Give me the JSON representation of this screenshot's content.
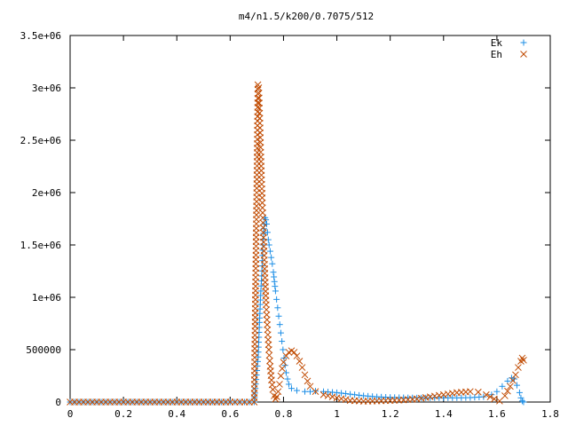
{
  "chart_data": {
    "type": "scatter",
    "title": "m4/n1.5/k200/0.7075/512",
    "xlabel": "",
    "ylabel": "",
    "xlim": [
      0,
      1.8
    ],
    "ylim": [
      0,
      3500000
    ],
    "x_ticks": [
      0,
      0.2,
      0.4,
      0.6,
      0.8,
      1,
      1.2,
      1.4,
      1.6,
      1.8
    ],
    "x_tick_labels": [
      "0",
      "0.2",
      "0.4",
      "0.6",
      "0.8",
      "1",
      "1.2",
      "1.4",
      "1.6",
      "1.8"
    ],
    "y_ticks": [
      0,
      500000,
      1000000,
      1500000,
      2000000,
      2500000,
      3000000,
      3500000
    ],
    "y_tick_labels": [
      "0",
      "500000",
      "1e+06",
      "1.5e+06",
      "2e+06",
      "2.5e+06",
      "3e+06",
      "3.5e+06"
    ],
    "grid": false,
    "legend_position": "top-right",
    "series": [
      {
        "name": "Ek",
        "marker": "plus",
        "color": "#1e8fe6",
        "points": [
          [
            0.0,
            0
          ],
          [
            0.1,
            0
          ],
          [
            0.2,
            0
          ],
          [
            0.3,
            0
          ],
          [
            0.4,
            0
          ],
          [
            0.5,
            0
          ],
          [
            0.6,
            0
          ],
          [
            0.69,
            0
          ],
          [
            0.705,
            430000
          ],
          [
            0.71,
            760000
          ],
          [
            0.715,
            1060000
          ],
          [
            0.72,
            1300000
          ],
          [
            0.722,
            1500000
          ],
          [
            0.725,
            1610000
          ],
          [
            0.728,
            1700000
          ],
          [
            0.731,
            1760000
          ],
          [
            0.734,
            1740000
          ],
          [
            0.737,
            1700000
          ],
          [
            0.74,
            1620000
          ],
          [
            0.743,
            1550000
          ],
          [
            0.746,
            1500000
          ],
          [
            0.75,
            1440000
          ],
          [
            0.754,
            1380000
          ],
          [
            0.758,
            1320000
          ],
          [
            0.762,
            1240000
          ],
          [
            0.766,
            1150000
          ],
          [
            0.77,
            1060000
          ],
          [
            0.774,
            980000
          ],
          [
            0.778,
            900000
          ],
          [
            0.782,
            820000
          ],
          [
            0.786,
            740000
          ],
          [
            0.79,
            660000
          ],
          [
            0.794,
            580000
          ],
          [
            0.798,
            500000
          ],
          [
            0.802,
            420000
          ],
          [
            0.806,
            350000
          ],
          [
            0.81,
            280000
          ],
          [
            0.815,
            220000
          ],
          [
            0.82,
            170000
          ],
          [
            0.83,
            130000
          ],
          [
            0.85,
            110000
          ],
          [
            0.88,
            100000
          ],
          [
            0.9,
            100000
          ],
          [
            0.92,
            105000
          ],
          [
            0.95,
            100000
          ],
          [
            1.0,
            90000
          ],
          [
            1.05,
            75000
          ],
          [
            1.1,
            60000
          ],
          [
            1.15,
            50000
          ],
          [
            1.2,
            45000
          ],
          [
            1.25,
            42000
          ],
          [
            1.3,
            40000
          ],
          [
            1.35,
            40000
          ],
          [
            1.4,
            40000
          ],
          [
            1.45,
            40000
          ],
          [
            1.5,
            42000
          ],
          [
            1.55,
            50000
          ],
          [
            1.58,
            70000
          ],
          [
            1.6,
            100000
          ],
          [
            1.62,
            150000
          ],
          [
            1.64,
            200000
          ],
          [
            1.655,
            230000
          ],
          [
            1.665,
            220000
          ],
          [
            1.675,
            160000
          ],
          [
            1.685,
            90000
          ],
          [
            1.69,
            40000
          ],
          [
            1.695,
            10000
          ],
          [
            1.7,
            0
          ]
        ]
      },
      {
        "name": "Eh",
        "marker": "cross",
        "color": "#c04a00",
        "points": [
          [
            0.0,
            0
          ],
          [
            0.1,
            0
          ],
          [
            0.2,
            0
          ],
          [
            0.3,
            0
          ],
          [
            0.4,
            0
          ],
          [
            0.5,
            0
          ],
          [
            0.6,
            0
          ],
          [
            0.69,
            0
          ],
          [
            0.702,
            2510000
          ],
          [
            0.704,
            3030000
          ],
          [
            0.707,
            3000000
          ],
          [
            0.711,
            2710000
          ],
          [
            0.715,
            2340000
          ],
          [
            0.72,
            1950000
          ],
          [
            0.725,
            1570000
          ],
          [
            0.73,
            1230000
          ],
          [
            0.735,
            930000
          ],
          [
            0.74,
            690000
          ],
          [
            0.745,
            500000
          ],
          [
            0.75,
            340000
          ],
          [
            0.755,
            210000
          ],
          [
            0.76,
            120000
          ],
          [
            0.765,
            60000
          ],
          [
            0.77,
            30000
          ],
          [
            0.775,
            50000
          ],
          [
            0.78,
            100000
          ],
          [
            0.785,
            170000
          ],
          [
            0.79,
            250000
          ],
          [
            0.795,
            320000
          ],
          [
            0.8,
            380000
          ],
          [
            0.81,
            440000
          ],
          [
            0.82,
            475000
          ],
          [
            0.83,
            490000
          ],
          [
            0.84,
            475000
          ],
          [
            0.85,
            440000
          ],
          [
            0.86,
            390000
          ],
          [
            0.87,
            330000
          ],
          [
            0.88,
            260000
          ],
          [
            0.89,
            200000
          ],
          [
            0.9,
            150000
          ],
          [
            0.92,
            100000
          ],
          [
            0.95,
            70000
          ],
          [
            1.0,
            40000
          ],
          [
            1.05,
            15000
          ],
          [
            1.1,
            8000
          ],
          [
            1.15,
            10000
          ],
          [
            1.2,
            15000
          ],
          [
            1.25,
            20000
          ],
          [
            1.3,
            30000
          ],
          [
            1.35,
            50000
          ],
          [
            1.4,
            70000
          ],
          [
            1.45,
            90000
          ],
          [
            1.5,
            100000
          ],
          [
            1.53,
            95000
          ],
          [
            1.56,
            70000
          ],
          [
            1.59,
            30000
          ],
          [
            1.61,
            10000
          ],
          [
            1.63,
            60000
          ],
          [
            1.65,
            150000
          ],
          [
            1.67,
            260000
          ],
          [
            1.68,
            330000
          ],
          [
            1.69,
            390000
          ],
          [
            1.695,
            420000
          ],
          [
            1.7,
            400000
          ]
        ]
      }
    ]
  }
}
